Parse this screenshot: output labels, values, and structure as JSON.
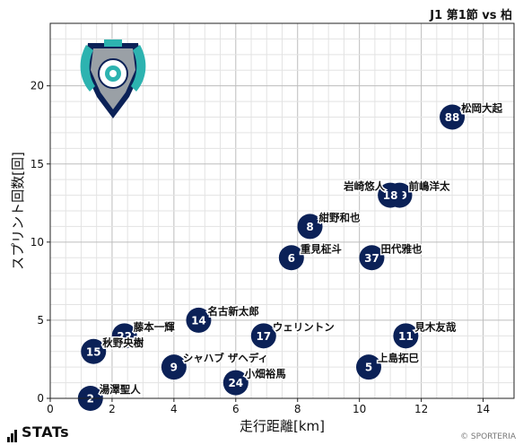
{
  "header": {
    "title": "J1 第1節 vs 柏"
  },
  "footer": {
    "brand": "STATs",
    "copyright": "© SPORTERIA"
  },
  "chart_data": {
    "type": "scatter",
    "xlabel": "走行距離[km]",
    "ylabel": "スプリント回数[回]",
    "xlim": [
      0,
      15
    ],
    "ylim": [
      0,
      24
    ],
    "xticks": [
      0,
      2,
      4,
      6,
      8,
      10,
      12,
      14
    ],
    "yticks": [
      0,
      5,
      10,
      15,
      20
    ],
    "grid": true,
    "marker_color": "#0b2157",
    "team_crest": "avispa-fukuoka-crest",
    "points": [
      {
        "number": "88",
        "name": "松岡大起",
        "x": 13.0,
        "y": 18
      },
      {
        "number": "19",
        "name": "前嶋洋太",
        "x": 11.3,
        "y": 13
      },
      {
        "number": "18",
        "name": "岩崎悠人",
        "x": 11.0,
        "y": 13
      },
      {
        "number": "8",
        "name": "紺野和也",
        "x": 8.4,
        "y": 11
      },
      {
        "number": "6",
        "name": "重見柾斗",
        "x": 7.8,
        "y": 9
      },
      {
        "number": "37",
        "name": "田代雅也",
        "x": 10.4,
        "y": 9
      },
      {
        "number": "14",
        "name": "名古新太郎",
        "x": 4.8,
        "y": 5
      },
      {
        "number": "22",
        "name": "藤本一輝",
        "x": 2.4,
        "y": 4
      },
      {
        "number": "17",
        "name": "ウェリントン",
        "x": 6.9,
        "y": 4
      },
      {
        "number": "11",
        "name": "見木友哉",
        "x": 11.5,
        "y": 4
      },
      {
        "number": "15",
        "name": "秋野央樹",
        "x": 1.4,
        "y": 3
      },
      {
        "number": "9",
        "name": "シャハブ ザヘディ",
        "x": 4.0,
        "y": 2
      },
      {
        "number": "5",
        "name": "上島拓巳",
        "x": 10.3,
        "y": 2
      },
      {
        "number": "24",
        "name": "小畑裕馬",
        "x": 6.0,
        "y": 1
      },
      {
        "number": "2",
        "name": "湯澤聖人",
        "x": 1.3,
        "y": 0
      }
    ]
  }
}
